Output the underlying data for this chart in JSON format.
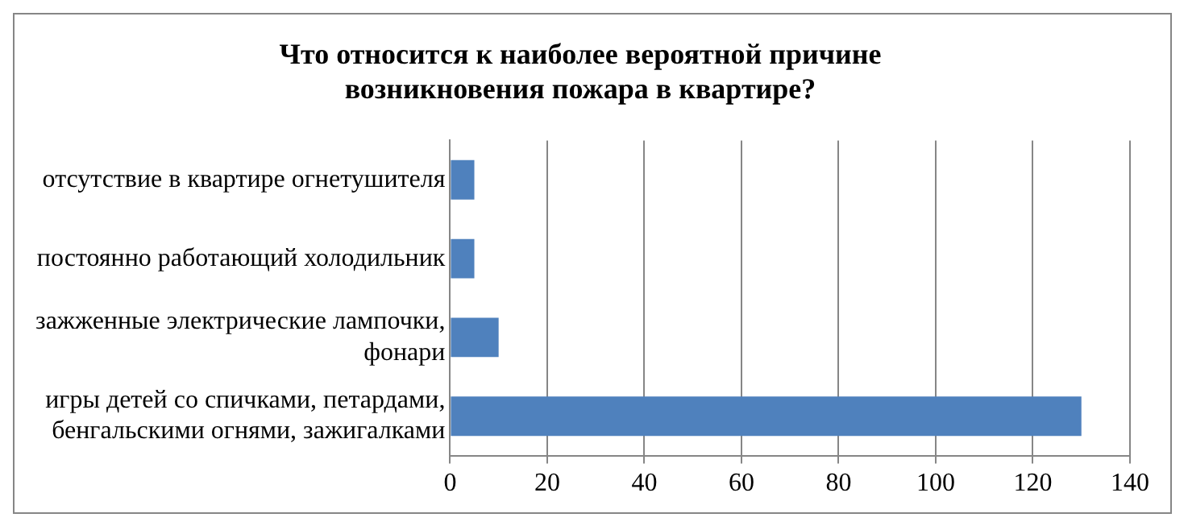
{
  "chart_data": {
    "type": "bar",
    "orientation": "horizontal",
    "title": "Что относится к наиболее вероятной причине возникновения пожара в квартире?",
    "categories": [
      "отсутствие в квартире огнетушителя",
      "постоянно работающий холодильник",
      "зажженные электрические лампочки, фонари",
      "игры детей со спичками, петардами, бенгальскими огнями, зажигалками"
    ],
    "values": [
      5,
      5,
      10,
      130
    ],
    "color": "#4f81bd",
    "xlim": [
      0,
      140
    ],
    "xticks": [
      0,
      20,
      40,
      60,
      80,
      100,
      120,
      140
    ],
    "grid": "x",
    "legend": false
  }
}
